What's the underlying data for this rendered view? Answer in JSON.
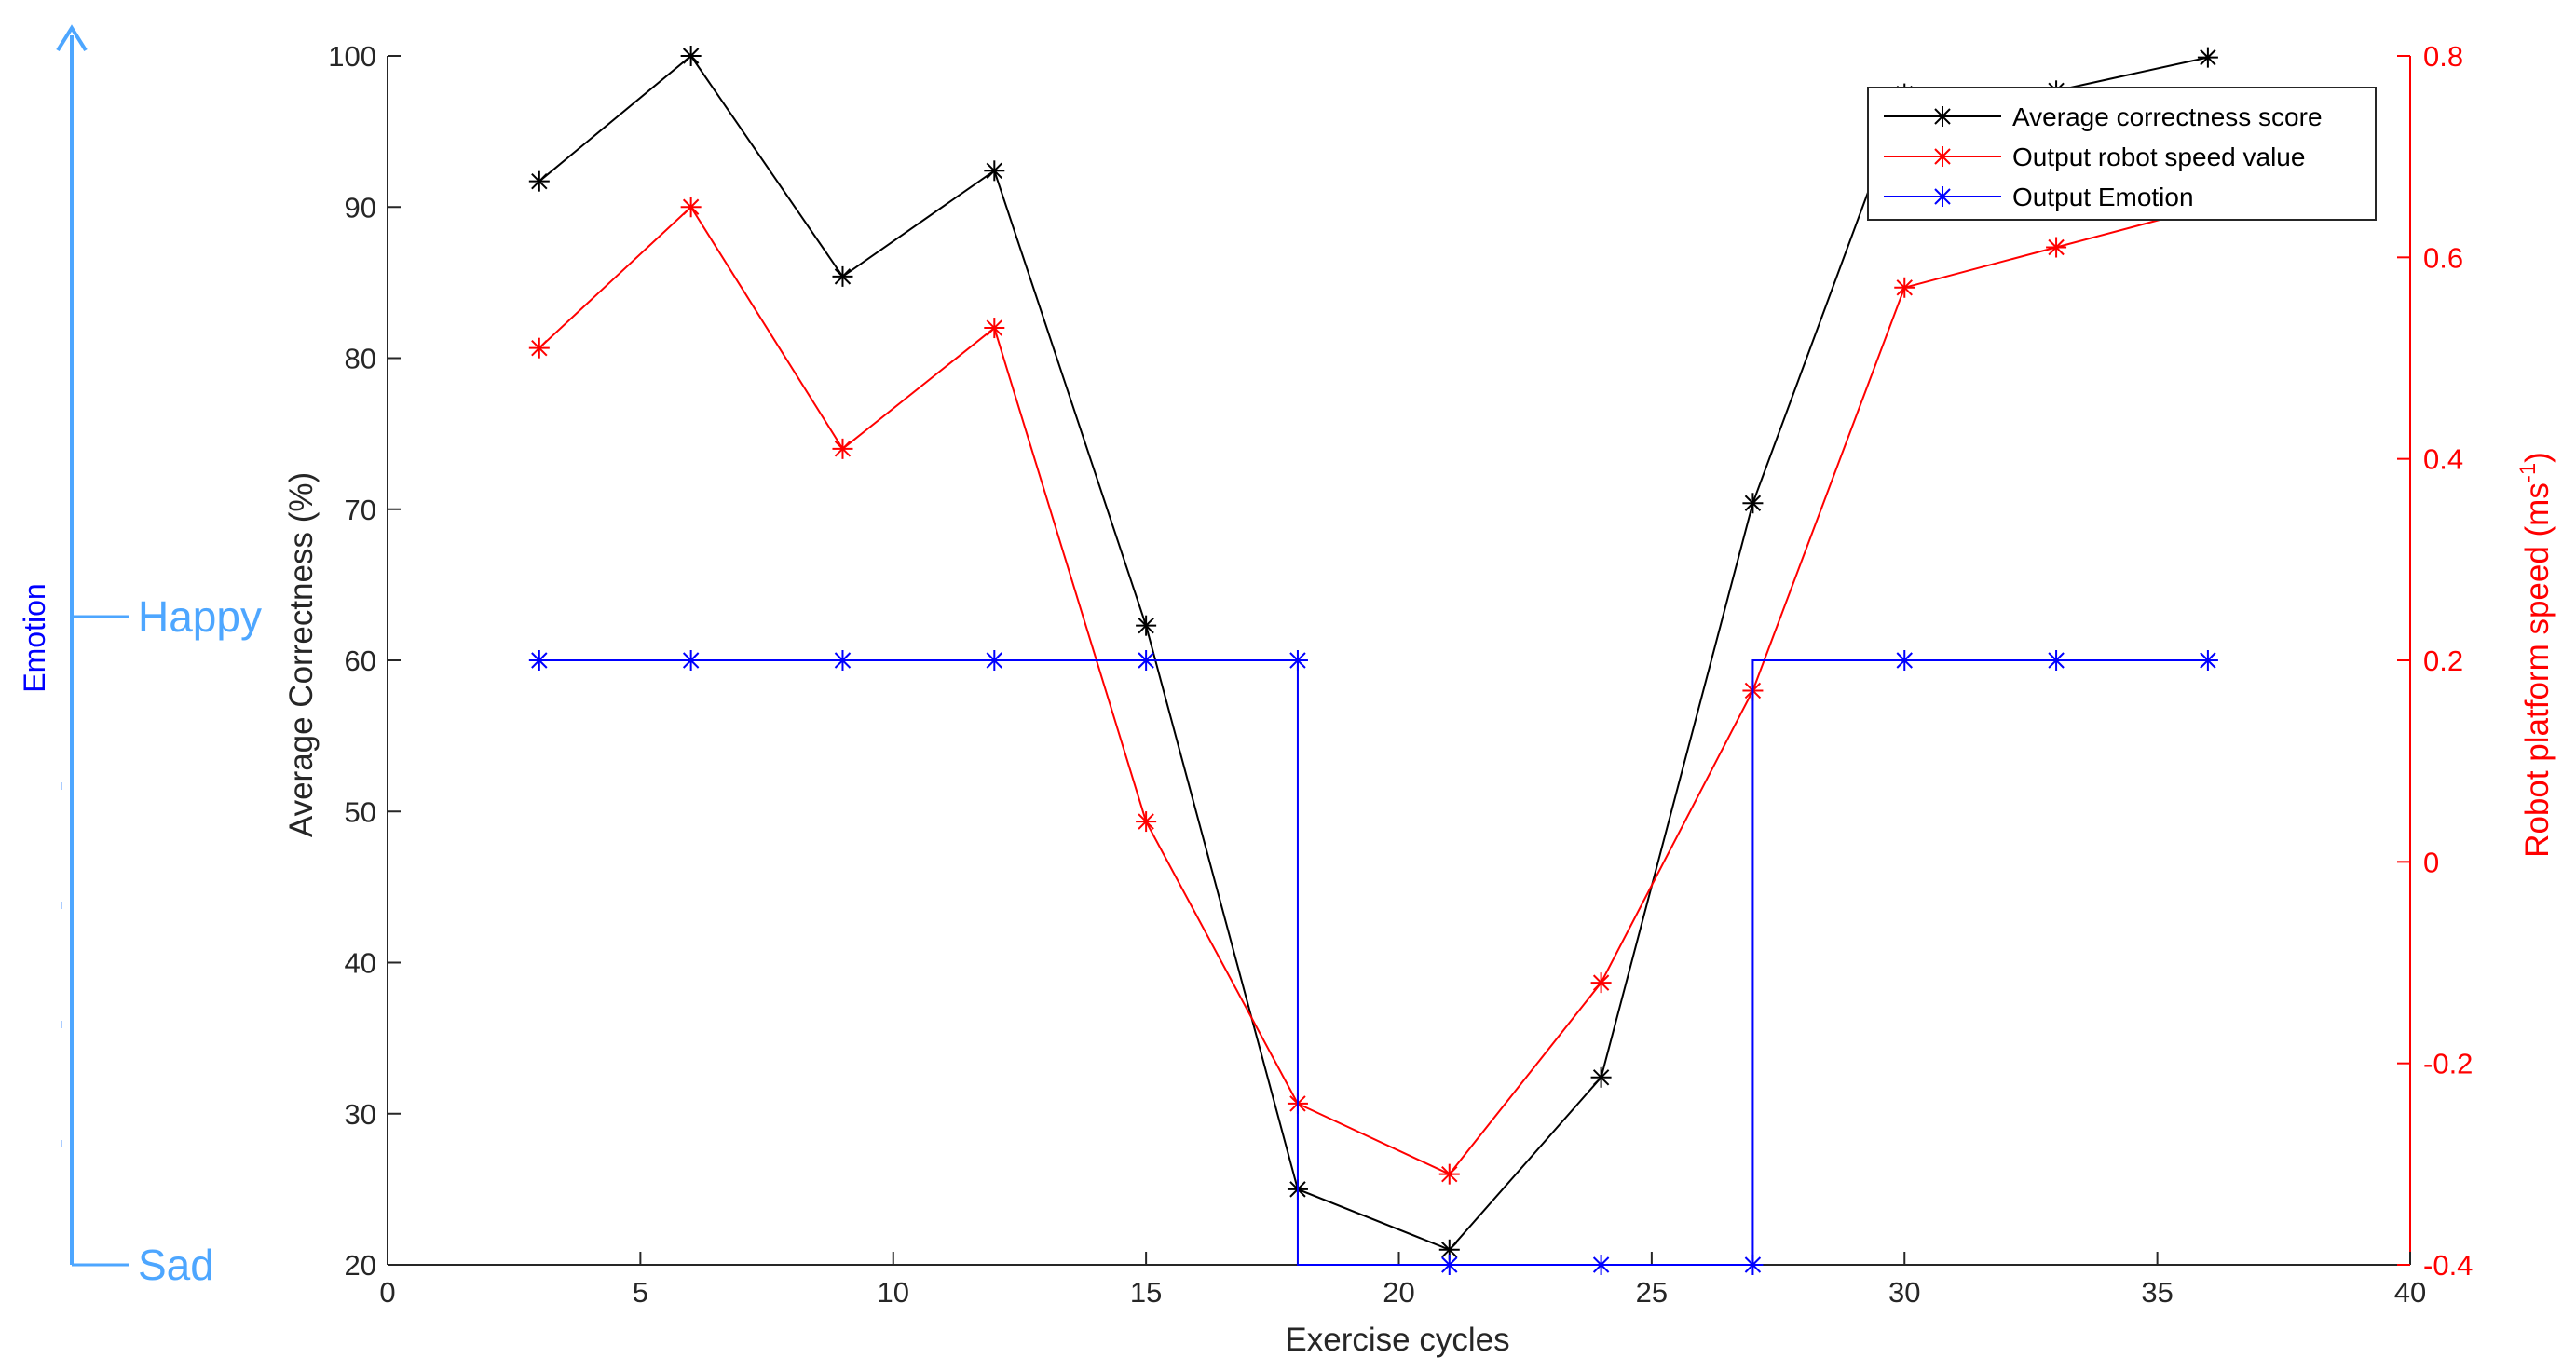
{
  "chart_data": {
    "type": "line",
    "title": "",
    "xlabel": "Exercise cycles",
    "ylabel": "Average Correctness (%)",
    "ylabel_right_main": "Robot platform speed (ms",
    "ylabel_right_sup": "-1",
    "ylabel_right_close": ")",
    "xlim": [
      0,
      40
    ],
    "ylim": [
      20,
      100
    ],
    "ylim_right": [
      -0.4,
      0.8
    ],
    "x_ticks": [
      0,
      5,
      10,
      15,
      20,
      25,
      30,
      35,
      40
    ],
    "y_ticks": [
      20,
      30,
      40,
      50,
      60,
      70,
      80,
      90,
      100
    ],
    "y_ticks_right": [
      -0.4,
      -0.2,
      0,
      0.2,
      0.4,
      0.6,
      0.8
    ],
    "y_ticks_right_labels": [
      "-0.4",
      "-0.2",
      "0",
      "0.2",
      "0.4",
      "0.6",
      "0.8"
    ],
    "grid": false,
    "legend_position": "top-right",
    "x": [
      3,
      6,
      9,
      12,
      15,
      18,
      21,
      24,
      27,
      30,
      33,
      36
    ],
    "series": [
      {
        "name": "Average correctness score",
        "axis": "left",
        "color": "#000000",
        "values": [
          91.7,
          100,
          85.4,
          92.4,
          62.3,
          25,
          21,
          32.4,
          70.4,
          97.5,
          97.7,
          99.9
        ]
      },
      {
        "name": "Output robot speed value",
        "axis": "right",
        "color": "#ff0000",
        "values": [
          0.51,
          0.65,
          0.41,
          0.53,
          0.04,
          -0.24,
          -0.31,
          -0.12,
          0.17,
          0.57,
          0.61,
          0.65
        ]
      },
      {
        "name": "Output Emotion",
        "axis": "emotion",
        "step": true,
        "color": "#0000ff",
        "values": [
          "Happy",
          "Happy",
          "Happy",
          "Happy",
          "Happy",
          "Happy",
          "Sad",
          "Sad",
          "Sad",
          "Happy",
          "Happy",
          "Happy"
        ]
      }
    ],
    "emotion_axis": {
      "title": "Emotion",
      "levels": [
        "Sad",
        "Happy"
      ],
      "color": "#4da6ff"
    }
  }
}
